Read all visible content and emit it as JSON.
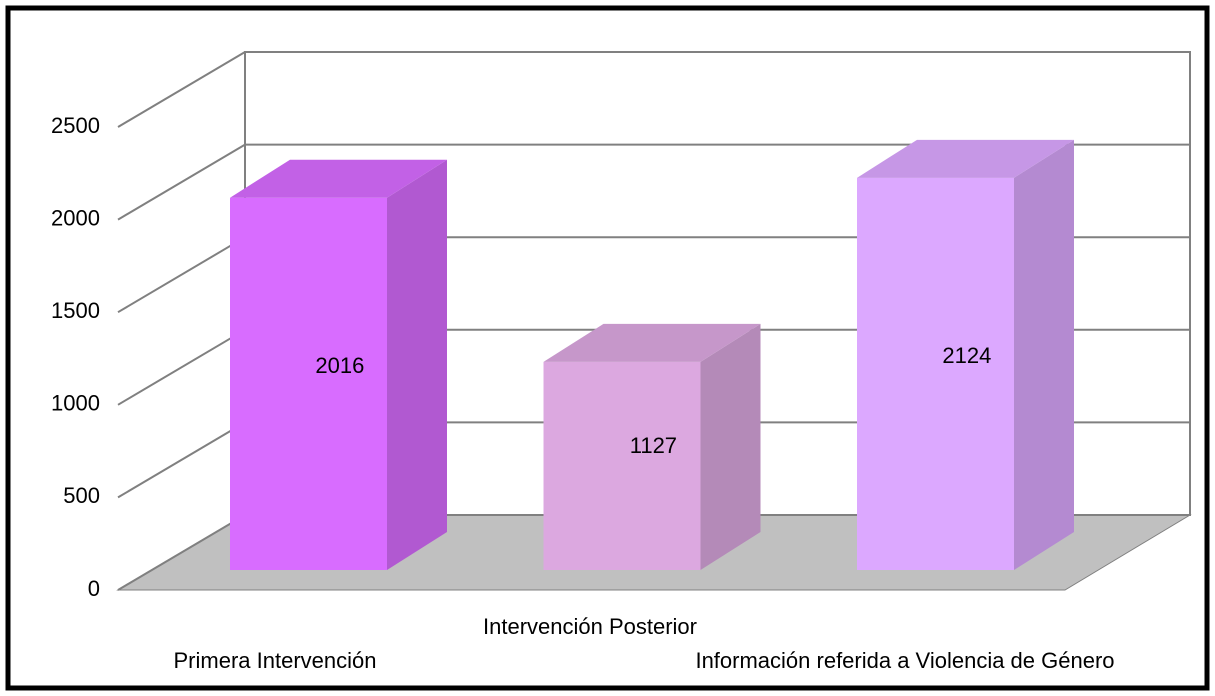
{
  "chart_data": {
    "type": "bar",
    "categories": [
      "Primera Intervención",
      "Intervención Posterior",
      "Información referida a Violencia de Género"
    ],
    "values": [
      2016,
      1127,
      2124
    ],
    "colors": [
      "#d86cff",
      "#dca8e0",
      "#dca8ff"
    ],
    "ylim": [
      0,
      2500
    ],
    "yticks": [
      0,
      500,
      1000,
      1500,
      2000,
      2500
    ],
    "grid": true
  }
}
